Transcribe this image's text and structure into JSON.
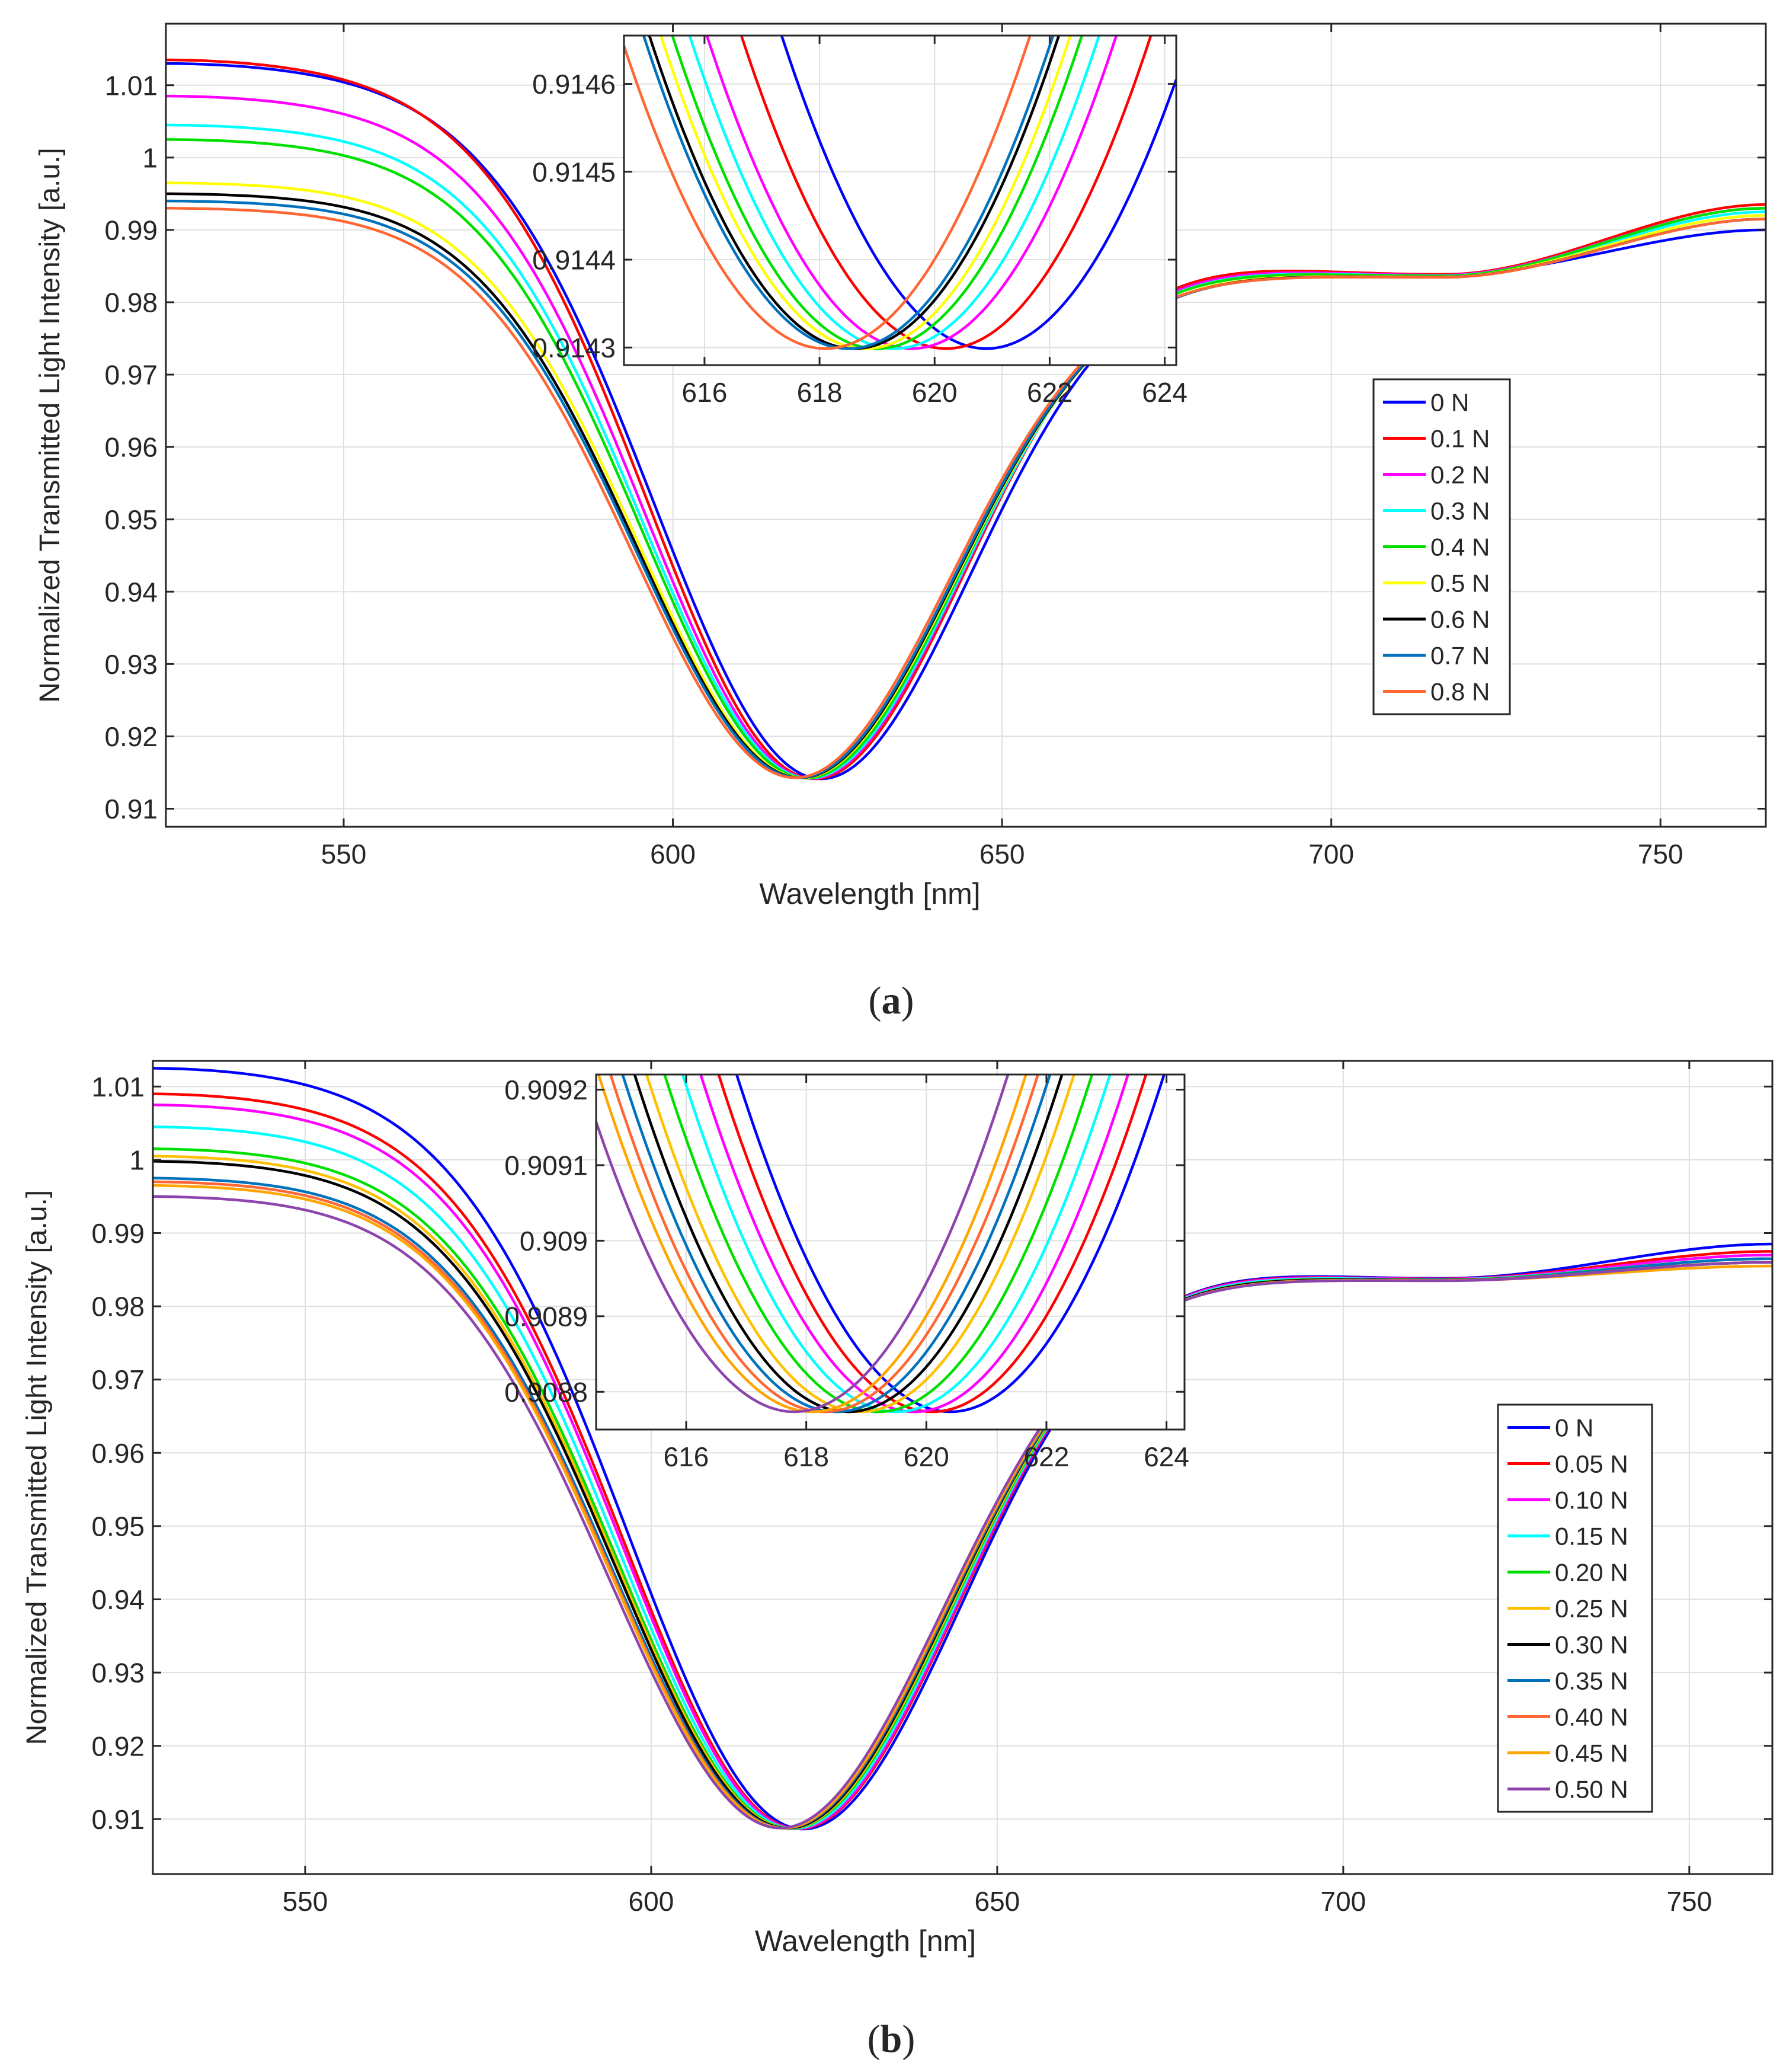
{
  "figure": {
    "panel_a_caption": {
      "open": "(",
      "letter": "a",
      "close": ")"
    },
    "panel_b_caption": {
      "open": "(",
      "letter": "b",
      "close": ")"
    }
  },
  "colors": {
    "axis": "#262626",
    "grid": "#dfdfdf",
    "series_a": [
      "#0000ff",
      "#ff0000",
      "#ff00ff",
      "#00ffff",
      "#00e000",
      "#ffff00",
      "#000000",
      "#0072bd",
      "#ff6633"
    ],
    "series_b": [
      "#0000ff",
      "#ff0000",
      "#ff00ff",
      "#00ffff",
      "#00e000",
      "#ffc000",
      "#000000",
      "#0072bd",
      "#ff6633",
      "#ffa500",
      "#8e44ad"
    ]
  },
  "chart_data": [
    {
      "id": "a-main",
      "type": "line",
      "xlabel": "Wavelength [nm]",
      "ylabel": "Normalized Transmitted Light Intensity [a.u.]",
      "xlim": [
        523,
        766
      ],
      "ylim": [
        0.9075,
        1.0185
      ],
      "xticks": [
        550,
        600,
        650,
        700,
        750
      ],
      "yticks": [
        0.91,
        0.92,
        0.93,
        0.94,
        0.95,
        0.96,
        0.97,
        0.98,
        0.99,
        1,
        1.01
      ],
      "xtick_labels": [
        "550",
        "600",
        "650",
        "700",
        "750"
      ],
      "ytick_labels": [
        "0.91",
        "0.92",
        "0.93",
        "0.94",
        "0.95",
        "0.96",
        "0.97",
        "0.98",
        "0.99",
        "1",
        "1.01"
      ],
      "grid": true,
      "legend": "center-right",
      "series": [
        {
          "name": "0 N",
          "start": 1.013,
          "min": 0.9143,
          "xmin": 621,
          "end": 0.99
        },
        {
          "name": "0.1 N",
          "start": 1.0135,
          "min": 0.9143,
          "xmin": 620.0,
          "end": 0.9935
        },
        {
          "name": "0.2 N",
          "start": 1.0085,
          "min": 0.9143,
          "xmin": 619.7,
          "end": 0.993
        },
        {
          "name": "0.3 N",
          "start": 1.0045,
          "min": 0.9143,
          "xmin": 619.5,
          "end": 0.9925
        },
        {
          "name": "0.4 N",
          "start": 1.0025,
          "min": 0.9143,
          "xmin": 619.2,
          "end": 0.993
        },
        {
          "name": "0.5 N",
          "start": 0.9965,
          "min": 0.9143,
          "xmin": 618.9,
          "end": 0.992
        },
        {
          "name": "0.6 N",
          "start": 0.995,
          "min": 0.9143,
          "xmin": 618.7,
          "end": 0.9915
        },
        {
          "name": "0.7 N",
          "start": 0.994,
          "min": 0.9143,
          "xmin": 618.5,
          "end": 0.9915
        },
        {
          "name": "0.8 N",
          "start": 0.993,
          "min": 0.9143,
          "xmin": 618.0,
          "end": 0.9915
        }
      ]
    },
    {
      "id": "a-inset",
      "type": "line",
      "xlim": [
        614.6,
        624.2
      ],
      "ylim": [
        0.91428,
        0.914655
      ],
      "xticks": [
        616,
        618,
        620,
        622,
        624
      ],
      "yticks": [
        0.9143,
        0.9144,
        0.9145,
        0.9146
      ],
      "xtick_labels": [
        "616",
        "618",
        "620",
        "622",
        "624"
      ],
      "ytick_labels": [
        "0.9143",
        "0.9144",
        "0.9145",
        "0.9146"
      ],
      "grid": true,
      "series": [
        {
          "name": "0 N",
          "xmin": 620.9
        },
        {
          "name": "0.1 N",
          "xmin": 620.2
        },
        {
          "name": "0.2 N",
          "xmin": 619.6
        },
        {
          "name": "0.3 N",
          "xmin": 619.3
        },
        {
          "name": "0.4 N",
          "xmin": 619.0
        },
        {
          "name": "0.5 N",
          "xmin": 618.8
        },
        {
          "name": "0.6 N",
          "xmin": 618.6
        },
        {
          "name": "0.7 N",
          "xmin": 618.5
        },
        {
          "name": "0.8 N",
          "xmin": 618.1
        }
      ]
    },
    {
      "id": "b-main",
      "type": "line",
      "xlabel": "Wavelength [nm]",
      "ylabel": "Normalized Transmitted Light Intensity [a.u.]",
      "xlim": [
        528,
        762
      ],
      "ylim": [
        0.9025,
        1.0135
      ],
      "xticks": [
        550,
        600,
        650,
        700,
        750
      ],
      "yticks": [
        0.91,
        0.92,
        0.93,
        0.94,
        0.95,
        0.96,
        0.97,
        0.98,
        0.99,
        1,
        1.01
      ],
      "xtick_labels": [
        "550",
        "600",
        "650",
        "700",
        "750"
      ],
      "ytick_labels": [
        "0.91",
        "0.92",
        "0.93",
        "0.94",
        "0.95",
        "0.96",
        "0.97",
        "0.98",
        "0.99",
        "1",
        "1.01"
      ],
      "grid": true,
      "legend": "bottom-right",
      "series": [
        {
          "name": "0 N",
          "start": 1.0125,
          "min": 0.9088,
          "xmin": 620.5,
          "end": 0.9885
        },
        {
          "name": "0.05 N",
          "start": 1.009,
          "min": 0.9088,
          "xmin": 620.0,
          "end": 0.9875
        },
        {
          "name": "0.10 N",
          "start": 1.0075,
          "min": 0.9088,
          "xmin": 619.8,
          "end": 0.987
        },
        {
          "name": "0.15 N",
          "start": 1.0045,
          "min": 0.9088,
          "xmin": 619.5,
          "end": 0.9865
        },
        {
          "name": "0.20 N",
          "start": 1.0015,
          "min": 0.9088,
          "xmin": 619.2,
          "end": 0.9865
        },
        {
          "name": "0.25 N",
          "start": 1.0005,
          "min": 0.9088,
          "xmin": 619.0,
          "end": 0.986
        },
        {
          "name": "0.30 N",
          "start": 0.9998,
          "min": 0.9088,
          "xmin": 618.8,
          "end": 0.986
        },
        {
          "name": "0.35 N",
          "start": 0.9975,
          "min": 0.9088,
          "xmin": 618.6,
          "end": 0.9865
        },
        {
          "name": "0.40 N",
          "start": 0.997,
          "min": 0.9088,
          "xmin": 618.4,
          "end": 0.986
        },
        {
          "name": "0.45 N",
          "start": 0.9965,
          "min": 0.9088,
          "xmin": 618.3,
          "end": 0.9855
        },
        {
          "name": "0.50 N",
          "start": 0.995,
          "min": 0.9088,
          "xmin": 618.0,
          "end": 0.986
        }
      ]
    },
    {
      "id": "b-inset",
      "type": "line",
      "xlim": [
        614.5,
        624.3
      ],
      "ylim": [
        0.90875,
        0.90922
      ],
      "xticks": [
        616,
        618,
        620,
        622,
        624
      ],
      "yticks": [
        0.9088,
        0.9089,
        0.909,
        0.9091,
        0.9092
      ],
      "xtick_labels": [
        "616",
        "618",
        "620",
        "622",
        "624"
      ],
      "ytick_labels": [
        "0.9088",
        "0.9089",
        "0.909",
        "0.9091",
        "0.9092"
      ],
      "grid": true,
      "series": [
        {
          "name": "0 N",
          "xmin": 620.4
        },
        {
          "name": "0.05 N",
          "xmin": 620.1
        },
        {
          "name": "0.10 N",
          "xmin": 619.8
        },
        {
          "name": "0.15 N",
          "xmin": 619.5
        },
        {
          "name": "0.20 N",
          "xmin": 619.2
        },
        {
          "name": "0.25 N",
          "xmin": 618.9
        },
        {
          "name": "0.30 N",
          "xmin": 618.7
        },
        {
          "name": "0.35 N",
          "xmin": 618.5
        },
        {
          "name": "0.40 N",
          "xmin": 618.3
        },
        {
          "name": "0.45 N",
          "xmin": 618.1
        },
        {
          "name": "0.50 N",
          "xmin": 617.8
        }
      ]
    }
  ]
}
